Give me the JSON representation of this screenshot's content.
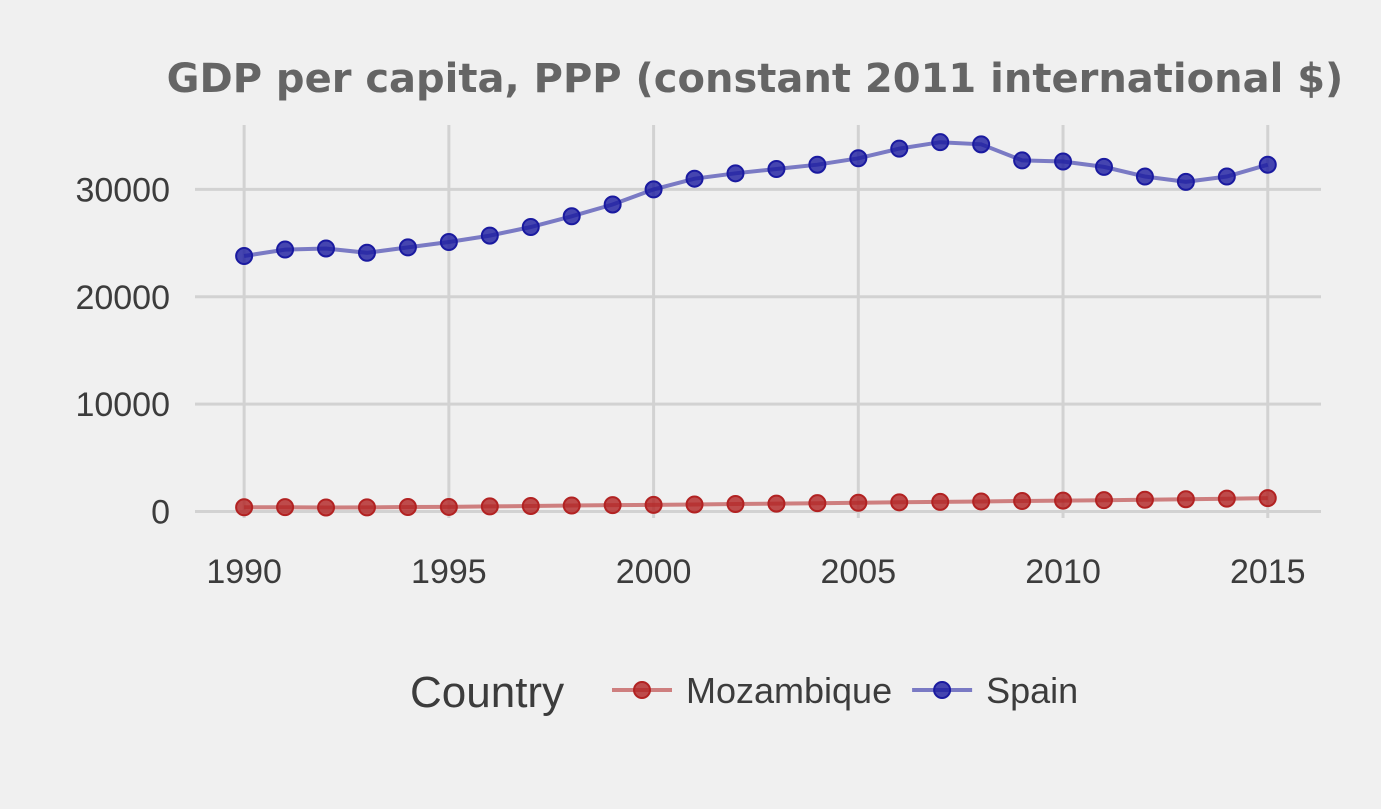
{
  "chart_data": {
    "type": "line",
    "title": "GDP per capita, PPP (constant 2011 international $)",
    "xlabel": "",
    "ylabel": "",
    "x": [
      1990,
      1991,
      1992,
      1993,
      1994,
      1995,
      1996,
      1997,
      1998,
      1999,
      2000,
      2001,
      2002,
      2003,
      2004,
      2005,
      2006,
      2007,
      2008,
      2009,
      2010,
      2011,
      2012,
      2013,
      2014,
      2015
    ],
    "xticks": [
      1990,
      1995,
      2000,
      2005,
      2010,
      2015
    ],
    "yticks": [
      0,
      10000,
      20000,
      30000
    ],
    "xlim": [
      1988.8,
      2016.3
    ],
    "ylim": [
      -600,
      36000
    ],
    "grid": true,
    "legend": {
      "title": "Country",
      "position": "bottom"
    },
    "series": [
      {
        "name": "Mozambique",
        "color": "#b22222",
        "values": [
          400,
          410,
          380,
          390,
          420,
          430,
          480,
          520,
          560,
          600,
          620,
          660,
          700,
          740,
          780,
          820,
          860,
          900,
          940,
          980,
          1020,
          1060,
          1100,
          1150,
          1200,
          1250
        ]
      },
      {
        "name": "Spain",
        "color": "#1a1aa0",
        "values": [
          23800,
          24400,
          24500,
          24100,
          24600,
          25100,
          25700,
          26500,
          27500,
          28600,
          30000,
          31000,
          31500,
          31900,
          32300,
          32900,
          33800,
          34400,
          34200,
          32700,
          32600,
          32100,
          31200,
          30700,
          31200,
          32300
        ]
      }
    ]
  }
}
